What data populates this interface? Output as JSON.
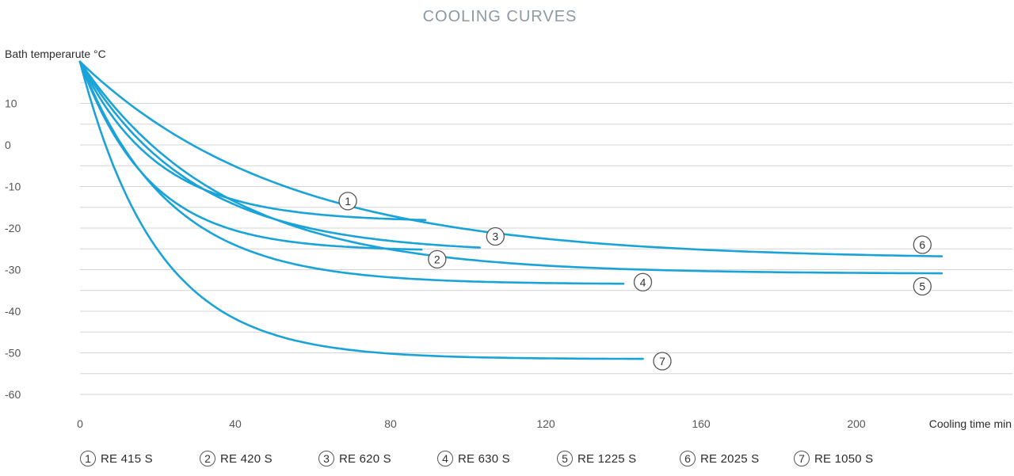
{
  "chart_data": {
    "type": "line",
    "title": "COOLING CURVES",
    "ylabel": "Bath temperarute °C",
    "xlabel": "Cooling time min",
    "xlim": [
      0,
      222
    ],
    "ylim": [
      -63,
      21
    ],
    "x_ticks": [
      0,
      40,
      80,
      120,
      160,
      200
    ],
    "y_ticks": [
      10,
      0,
      -10,
      -20,
      -30,
      -40,
      -50,
      -60
    ],
    "grid": "horizontal",
    "legend_position": "bottom",
    "colors": {
      "line": "#1aa3d9",
      "grid": "#d4d4d4",
      "title": "#8c99a3",
      "text": "#333333"
    },
    "series": [
      {
        "name": "RE 415 S",
        "marker": "1",
        "start": 20,
        "asymptote": -18.5,
        "tau": 20,
        "x_end": 89,
        "label_pos": [
          69,
          -13.5
        ]
      },
      {
        "name": "RE 420 S",
        "marker": "2",
        "start": 20,
        "asymptote": -25.5,
        "tau": 18,
        "x_end": 88,
        "label_pos": [
          92,
          -27.5
        ]
      },
      {
        "name": "RE 620 S",
        "marker": "3",
        "start": 20,
        "asymptote": -26,
        "tau": 29,
        "x_end": 103,
        "label_pos": [
          107,
          -22
        ]
      },
      {
        "name": "RE 630 S",
        "marker": "4",
        "start": 20,
        "asymptote": -33.5,
        "tau": 23,
        "x_end": 140,
        "label_pos": [
          145,
          -33
        ]
      },
      {
        "name": "RE 1225 S",
        "marker": "5",
        "start": 20,
        "asymptote": -31,
        "tau": 37,
        "x_end": 222,
        "label_pos": [
          217,
          -34
        ]
      },
      {
        "name": "RE 2025 S",
        "marker": "6",
        "start": 20,
        "asymptote": -27.5,
        "tau": 53,
        "x_end": 222,
        "label_pos": [
          217,
          -24
        ]
      },
      {
        "name": "RE 1050 S",
        "marker": "7",
        "start": 20,
        "asymptote": -51.5,
        "tau": 20,
        "x_end": 145,
        "label_pos": [
          150,
          -52
        ]
      }
    ]
  }
}
